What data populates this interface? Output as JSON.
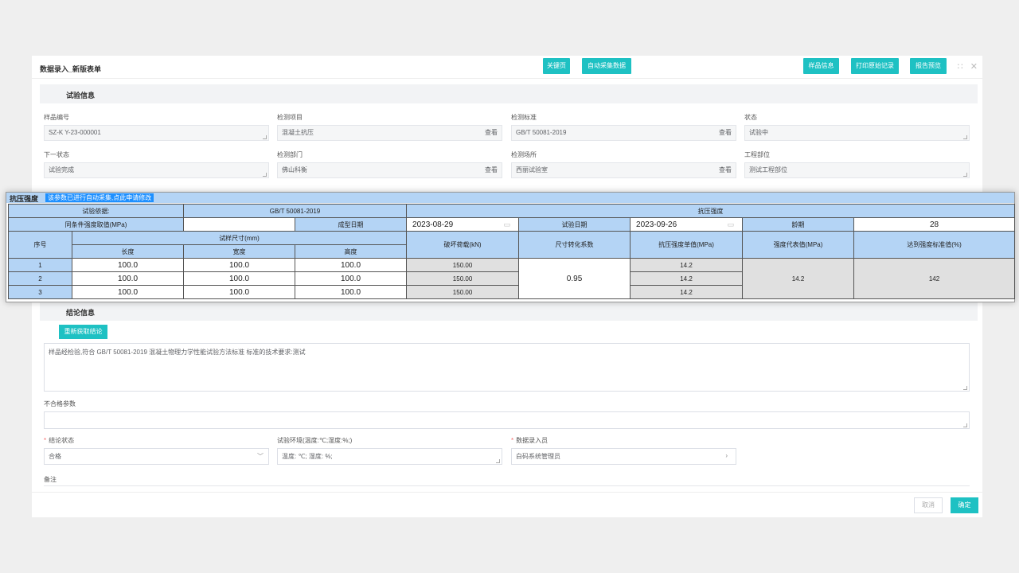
{
  "dialog": {
    "title": "数据录入_新版表单",
    "buttons": {
      "keypage": "关键页",
      "auto_collect": "自动采集数据",
      "sample_info": "样品信息",
      "print_raw": "打印原始记录",
      "report_preview": "报告预览"
    }
  },
  "test_info": {
    "section_title": "试验信息",
    "fields": {
      "sample_no_label": "样品编号",
      "sample_no": "SZ-K Y-23-000001",
      "item_label": "检测项目",
      "item": "混凝土抗压",
      "standard_label": "检测标准",
      "standard": "GB/T 50081-2019",
      "status_label": "状态",
      "status": "试验中",
      "next_status_label": "下一状态",
      "next_status": "试验完成",
      "dept_label": "检测部门",
      "dept": "佛山科衡",
      "place_label": "检测场所",
      "place": "西丽试验室",
      "part_label": "工程部位",
      "part": "测试工程部位",
      "view": "查看"
    }
  },
  "strength_panel": {
    "title": "抗压强度",
    "note": "该参数已进行自动采集,点此申请修改",
    "basis_label": "试验依据:",
    "basis": "GB/T 50081-2019",
    "group_title": "抗压强度",
    "same_cond_label": "同条件强度取值(MPa)",
    "same_cond_value": "",
    "molding_date_label": "成型日期",
    "molding_date": "2023-08-29",
    "test_date_label": "试验日期",
    "test_date": "2023-09-26",
    "age_label": "龄期",
    "age": "28",
    "col_no": "序号",
    "col_size": "试样尺寸(mm)",
    "col_length": "长度",
    "col_width": "宽度",
    "col_height": "高度",
    "col_load": "破坏荷载(kN)",
    "col_factor": "尺寸转化系数",
    "col_single": "抗压强度单值(MPa)",
    "col_repr": "强度代表值(MPa)",
    "col_pct": "达到强度标准值(%)",
    "factor": "0.95",
    "repr": "14.2",
    "pct": "142",
    "rows": [
      {
        "no": "1",
        "length": "100.0",
        "width": "100.0",
        "height": "100.0",
        "load": "150.00",
        "single": "14.2"
      },
      {
        "no": "2",
        "length": "100.0",
        "width": "100.0",
        "height": "100.0",
        "load": "150.00",
        "single": "14.2"
      },
      {
        "no": "3",
        "length": "100.0",
        "width": "100.0",
        "height": "100.0",
        "load": "150.00",
        "single": "14.2"
      }
    ]
  },
  "conclusion": {
    "section_title": "结论信息",
    "refetch_button": "重新获取结论",
    "text": "样品经检验,符合 GB/T 50081-2019 混凝土物理力学性能试验方法标准 标准的技术要求:测试",
    "unqualified_label": "不合格参数",
    "status_label": "结论状态",
    "status_value": "合格",
    "env_label": "试验环境(温度:℃;湿度:%;)",
    "env_value": "温度: ℃; 湿度: %;",
    "entry_label": "数据录入员",
    "entry_value": "白码系统管理员",
    "remark_label": "备注"
  },
  "footer": {
    "cancel": "取消",
    "confirm": "确定"
  }
}
